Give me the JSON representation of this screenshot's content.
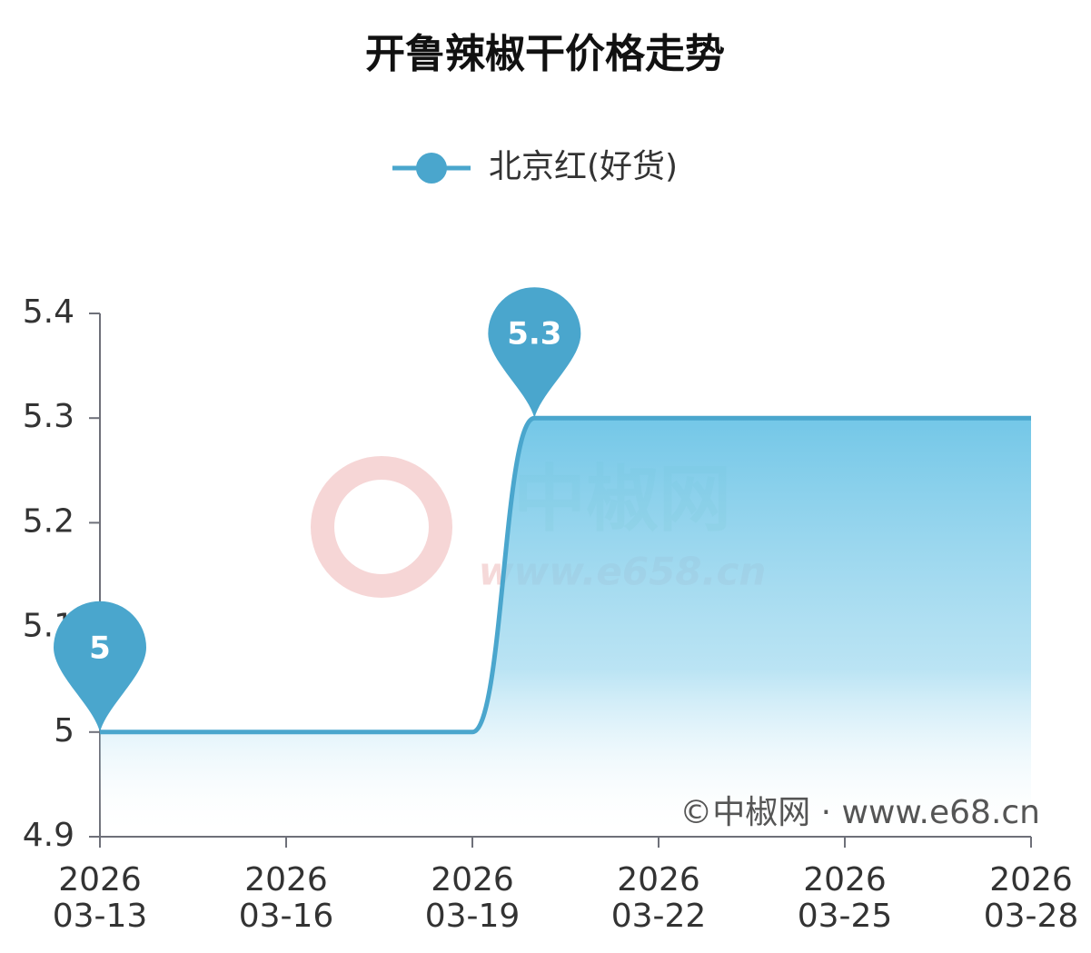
{
  "chart_data": {
    "type": "line",
    "title": "开鲁辣椒干价格走势",
    "x": [
      "2026-03-13",
      "2026-03-14",
      "2026-03-15",
      "2026-03-16",
      "2026-03-17",
      "2026-03-18",
      "2026-03-19",
      "2026-03-20",
      "2026-03-21",
      "2026-03-22",
      "2026-03-23",
      "2026-03-24",
      "2026-03-25",
      "2026-03-26",
      "2026-03-27",
      "2026-03-28"
    ],
    "series": [
      {
        "name": "北京红(好货)",
        "color": "#4aa6cd",
        "values": [
          5,
          5,
          5,
          5,
          5,
          5,
          5,
          5.3,
          5.3,
          5.3,
          5.3,
          5.3,
          5.3,
          5.3,
          5.3,
          5.3
        ]
      }
    ],
    "ylim": [
      4.9,
      5.4
    ],
    "yticks": [
      4.9,
      5,
      5.1,
      5.2,
      5.3,
      5.4
    ],
    "xticks": [
      {
        "value": "2026-03-13",
        "label": "2026\n03-13"
      },
      {
        "value": "2026-03-16",
        "label": "2026\n03-16"
      },
      {
        "value": "2026-03-19",
        "label": "2026\n03-19"
      },
      {
        "value": "2026-03-22",
        "label": "2026\n03-22"
      },
      {
        "value": "2026-03-25",
        "label": "2026\n03-25"
      },
      {
        "value": "2026-03-28",
        "label": "2026\n03-28"
      }
    ],
    "legend": "top",
    "watermark": [
      "中椒网",
      "www.e658.cn"
    ],
    "credit": "©中椒网 · www.e68.cn"
  }
}
